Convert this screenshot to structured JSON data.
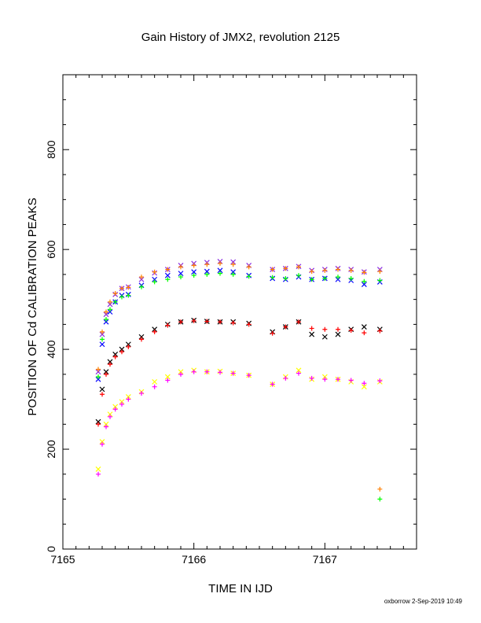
{
  "chart_data": {
    "type": "scatter",
    "title": "Gain History of JMX2, revolution 2125",
    "xlabel": "TIME IN IJD",
    "ylabel": "POSITION OF Cd CALIBRATION PEAKS",
    "xlim": [
      7165,
      7167.7
    ],
    "ylim": [
      0,
      950
    ],
    "xticks": [
      "7165",
      "7166",
      "7167"
    ],
    "yticks": [
      "0",
      "200",
      "400",
      "600",
      "800"
    ],
    "grid": false,
    "legend": "none",
    "footer": "oxborrow  2-Sep-2019 10:49",
    "series": [
      {
        "color": "#8a2be2",
        "marker": "x",
        "x": [
          7165.27,
          7165.3,
          7165.33,
          7165.36,
          7165.4,
          7165.45,
          7165.5,
          7165.6,
          7165.7,
          7165.8,
          7165.9,
          7166.0,
          7166.1,
          7166.2,
          7166.3,
          7166.42,
          7166.6,
          7166.7,
          7166.8,
          7166.9,
          7167.0,
          7167.1,
          7167.2,
          7167.3,
          7167.42
        ],
        "y": [
          355,
          430,
          470,
          490,
          510,
          522,
          525,
          540,
          553,
          560,
          568,
          572,
          574,
          576,
          575,
          568,
          560,
          562,
          566,
          558,
          560,
          562,
          560,
          555,
          560
        ]
      },
      {
        "color": "#0000ff",
        "marker": "x",
        "x": [
          7165.27,
          7165.3,
          7165.33,
          7165.36,
          7165.4,
          7165.45,
          7165.5,
          7165.6,
          7165.7,
          7165.8,
          7165.9,
          7166.0,
          7166.1,
          7166.2,
          7166.3,
          7166.42,
          7166.6,
          7166.7,
          7166.8,
          7166.9,
          7167.0,
          7167.1,
          7167.2,
          7167.3,
          7167.42
        ],
        "y": [
          340,
          410,
          455,
          475,
          495,
          508,
          510,
          528,
          540,
          548,
          552,
          555,
          556,
          558,
          555,
          548,
          542,
          540,
          545,
          540,
          542,
          540,
          538,
          530,
          535
        ]
      },
      {
        "color": "#ff7f00",
        "marker": "+",
        "x": [
          7165.27,
          7165.3,
          7165.33,
          7165.36,
          7165.4,
          7165.45,
          7165.5,
          7165.6,
          7165.7,
          7165.8,
          7165.9,
          7166.0,
          7166.1,
          7166.2,
          7166.3,
          7166.42,
          7166.6,
          7166.7,
          7166.8,
          7166.9,
          7167.0,
          7167.1,
          7167.2,
          7167.3,
          7167.42,
          7167.42
        ],
        "y": [
          360,
          435,
          475,
          495,
          512,
          522,
          524,
          545,
          555,
          560,
          565,
          568,
          570,
          572,
          570,
          565,
          560,
          562,
          565,
          556,
          558,
          560,
          558,
          554,
          556,
          120
        ]
      },
      {
        "color": "#00ff00",
        "marker": "+",
        "x": [
          7165.27,
          7165.3,
          7165.33,
          7165.36,
          7165.4,
          7165.45,
          7165.5,
          7165.6,
          7165.7,
          7165.8,
          7165.9,
          7166.0,
          7166.1,
          7166.2,
          7166.3,
          7166.42,
          7166.6,
          7166.7,
          7166.8,
          7166.9,
          7167.0,
          7167.1,
          7167.2,
          7167.3,
          7167.42,
          7167.42
        ],
        "y": [
          345,
          420,
          460,
          480,
          495,
          505,
          508,
          525,
          535,
          540,
          545,
          548,
          550,
          552,
          550,
          546,
          544,
          542,
          548,
          540,
          542,
          545,
          542,
          536,
          538,
          100
        ]
      },
      {
        "color": "#000000",
        "marker": "x",
        "x": [
          7165.27,
          7165.3,
          7165.33,
          7165.36,
          7165.4,
          7165.45,
          7165.5,
          7165.6,
          7165.7,
          7165.8,
          7165.9,
          7166.0,
          7166.1,
          7166.2,
          7166.3,
          7166.42,
          7166.6,
          7166.7,
          7166.8,
          7166.9,
          7167.0,
          7167.1,
          7167.2,
          7167.3,
          7167.42
        ],
        "y": [
          255,
          320,
          355,
          375,
          390,
          400,
          410,
          425,
          440,
          450,
          455,
          458,
          456,
          455,
          455,
          452,
          435,
          445,
          455,
          430,
          425,
          430,
          440,
          445,
          440
        ]
      },
      {
        "color": "#ff0000",
        "marker": "+",
        "x": [
          7165.27,
          7165.3,
          7165.33,
          7165.36,
          7165.4,
          7165.45,
          7165.5,
          7165.6,
          7165.7,
          7165.8,
          7165.9,
          7166.0,
          7166.1,
          7166.2,
          7166.3,
          7166.42,
          7166.6,
          7166.7,
          7166.8,
          7166.9,
          7167.0,
          7167.1,
          7167.2,
          7167.3,
          7167.42
        ],
        "y": [
          250,
          310,
          350,
          370,
          385,
          395,
          405,
          420,
          435,
          448,
          455,
          457,
          456,
          455,
          453,
          450,
          432,
          445,
          455,
          442,
          440,
          440,
          438,
          433,
          437
        ]
      },
      {
        "color": "#ffff00",
        "marker": "x",
        "x": [
          7165.27,
          7165.3,
          7165.33,
          7165.36,
          7165.4,
          7165.45,
          7165.5,
          7165.6,
          7165.7,
          7165.8,
          7165.9,
          7166.0,
          7166.1,
          7166.2,
          7166.3,
          7166.42,
          7166.6,
          7166.7,
          7166.8,
          7166.9,
          7167.0,
          7167.1,
          7167.2,
          7167.3,
          7167.42
        ],
        "y": [
          160,
          215,
          250,
          270,
          285,
          295,
          305,
          315,
          335,
          345,
          355,
          358,
          355,
          356,
          352,
          348,
          330,
          345,
          358,
          340,
          345,
          340,
          335,
          325,
          335
        ]
      },
      {
        "color": "#ff00ff",
        "marker": "+",
        "x": [
          7165.27,
          7165.3,
          7165.33,
          7165.36,
          7165.4,
          7165.45,
          7165.5,
          7165.6,
          7165.7,
          7165.8,
          7165.9,
          7166.0,
          7166.1,
          7166.2,
          7166.3,
          7166.42,
          7166.6,
          7166.7,
          7166.8,
          7166.9,
          7167.0,
          7167.1,
          7167.2,
          7167.3,
          7167.42
        ],
        "y": [
          150,
          210,
          245,
          265,
          280,
          290,
          300,
          312,
          325,
          338,
          350,
          355,
          355,
          354,
          352,
          348,
          330,
          342,
          352,
          342,
          340,
          340,
          338,
          332,
          337
        ]
      }
    ]
  }
}
